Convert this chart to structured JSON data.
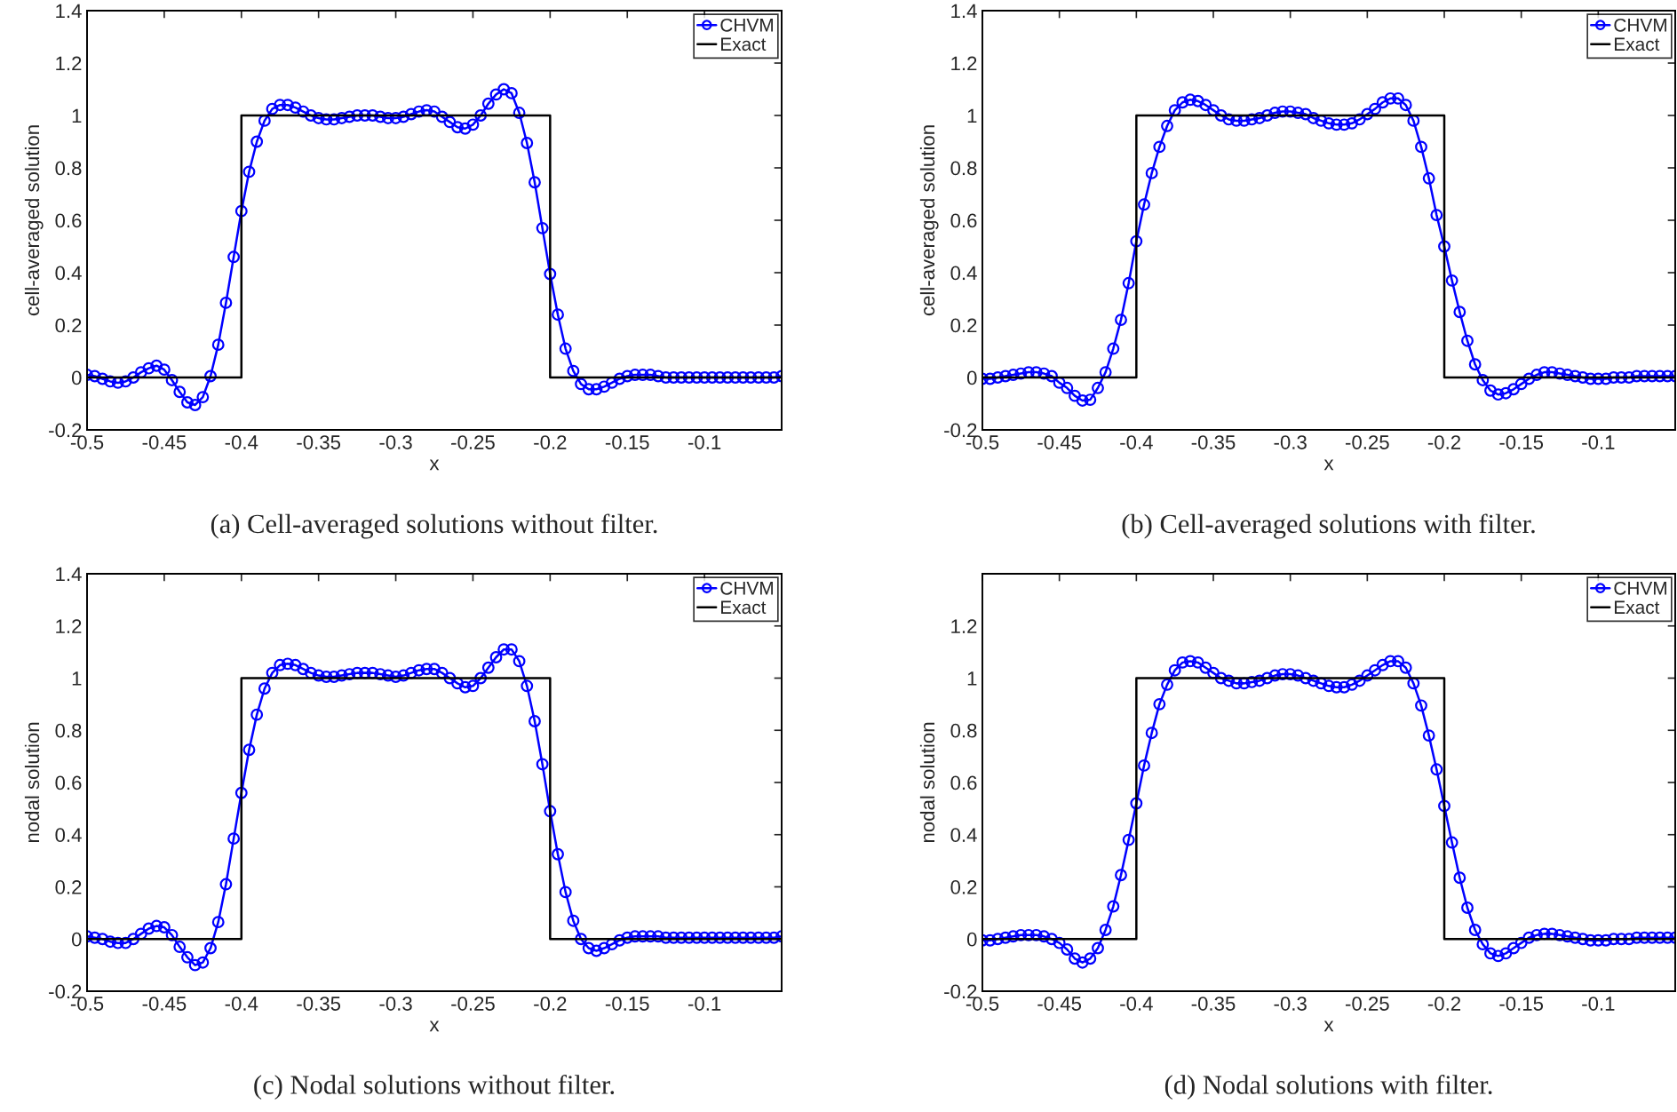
{
  "chart_data": [
    {
      "type": "line",
      "title": "(a) Cell-averaged solutions without filter.",
      "xlabel": "x",
      "ylabel": "cell-averaged solution",
      "legend": "top right",
      "xlim": [
        -0.5,
        -0.05
      ],
      "ylim": [
        -0.2,
        1.4
      ],
      "xticks": [
        -0.5,
        -0.45,
        -0.4,
        -0.35,
        -0.3,
        -0.25,
        -0.2,
        -0.15,
        -0.1
      ],
      "yticks": [
        -0.2,
        0,
        0.2,
        0.4,
        0.6,
        0.8,
        1,
        1.2,
        1.4
      ],
      "x": [
        -0.5,
        -0.495,
        -0.49,
        -0.485,
        -0.48,
        -0.475,
        -0.47,
        -0.465,
        -0.46,
        -0.455,
        -0.45,
        -0.445,
        -0.44,
        -0.435,
        -0.43,
        -0.425,
        -0.42,
        -0.415,
        -0.41,
        -0.405,
        -0.4,
        -0.395,
        -0.39,
        -0.385,
        -0.38,
        -0.375,
        -0.37,
        -0.365,
        -0.36,
        -0.355,
        -0.35,
        -0.345,
        -0.34,
        -0.335,
        -0.33,
        -0.325,
        -0.32,
        -0.315,
        -0.31,
        -0.305,
        -0.3,
        -0.295,
        -0.29,
        -0.285,
        -0.28,
        -0.275,
        -0.27,
        -0.265,
        -0.26,
        -0.255,
        -0.25,
        -0.245,
        -0.24,
        -0.235,
        -0.23,
        -0.225,
        -0.22,
        -0.215,
        -0.21,
        -0.205,
        -0.2,
        -0.195,
        -0.19,
        -0.185,
        -0.18,
        -0.175,
        -0.17,
        -0.165,
        -0.16,
        -0.155,
        -0.15,
        -0.145,
        -0.14,
        -0.135,
        -0.13,
        -0.125,
        -0.12,
        -0.115,
        -0.11,
        -0.105,
        -0.1,
        -0.095,
        -0.09,
        -0.085,
        -0.08,
        -0.075,
        -0.07,
        -0.065,
        -0.06,
        -0.055,
        -0.05
      ],
      "series": [
        {
          "name": "CHVM",
          "color": "#0000ff",
          "marker": "circle",
          "values": [
            0.01,
            0.005,
            -0.005,
            -0.015,
            -0.02,
            -0.015,
            0,
            0.02,
            0.035,
            0.045,
            0.03,
            -0.01,
            -0.055,
            -0.095,
            -0.105,
            -0.075,
            0.005,
            0.125,
            0.285,
            0.46,
            0.635,
            0.785,
            0.9,
            0.98,
            1.025,
            1.04,
            1.04,
            1.03,
            1.015,
            1.0,
            0.99,
            0.985,
            0.985,
            0.99,
            0.995,
            1.0,
            1.0,
            1.0,
            0.995,
            0.99,
            0.99,
            0.995,
            1.005,
            1.015,
            1.02,
            1.015,
            0.995,
            0.975,
            0.955,
            0.95,
            0.965,
            1.0,
            1.045,
            1.08,
            1.1,
            1.085,
            1.01,
            0.895,
            0.745,
            0.57,
            0.395,
            0.24,
            0.11,
            0.025,
            -0.025,
            -0.045,
            -0.045,
            -0.035,
            -0.02,
            -0.005,
            0.005,
            0.01,
            0.01,
            0.01,
            0.005,
            0,
            0,
            0,
            0,
            0,
            0,
            0,
            0,
            0,
            0,
            0,
            0,
            0,
            0,
            0,
            0.005
          ]
        },
        {
          "name": "Exact",
          "color": "#000000",
          "marker": "none",
          "x": [
            -0.5,
            -0.4,
            -0.4,
            -0.2,
            -0.2,
            -0.05
          ],
          "values": [
            0,
            0,
            1,
            1,
            0,
            0
          ]
        }
      ]
    },
    {
      "type": "line",
      "title": "(b) Cell-averaged solutions with filter.",
      "xlabel": "x",
      "ylabel": "cell-averaged solution",
      "legend": "top right",
      "xlim": [
        -0.5,
        -0.05
      ],
      "ylim": [
        -0.2,
        1.4
      ],
      "xticks": [
        -0.5,
        -0.45,
        -0.4,
        -0.35,
        -0.3,
        -0.25,
        -0.2,
        -0.15,
        -0.1
      ],
      "yticks": [
        -0.2,
        0,
        0.2,
        0.4,
        0.6,
        0.8,
        1,
        1.2,
        1.4
      ],
      "x": [
        -0.5,
        -0.495,
        -0.49,
        -0.485,
        -0.48,
        -0.475,
        -0.47,
        -0.465,
        -0.46,
        -0.455,
        -0.45,
        -0.445,
        -0.44,
        -0.435,
        -0.43,
        -0.425,
        -0.42,
        -0.415,
        -0.41,
        -0.405,
        -0.4,
        -0.395,
        -0.39,
        -0.385,
        -0.38,
        -0.375,
        -0.37,
        -0.365,
        -0.36,
        -0.355,
        -0.35,
        -0.345,
        -0.34,
        -0.335,
        -0.33,
        -0.325,
        -0.32,
        -0.315,
        -0.31,
        -0.305,
        -0.3,
        -0.295,
        -0.29,
        -0.285,
        -0.28,
        -0.275,
        -0.27,
        -0.265,
        -0.26,
        -0.255,
        -0.25,
        -0.245,
        -0.24,
        -0.235,
        -0.23,
        -0.225,
        -0.22,
        -0.215,
        -0.21,
        -0.205,
        -0.2,
        -0.195,
        -0.19,
        -0.185,
        -0.18,
        -0.175,
        -0.17,
        -0.165,
        -0.16,
        -0.155,
        -0.15,
        -0.145,
        -0.14,
        -0.135,
        -0.13,
        -0.125,
        -0.12,
        -0.115,
        -0.11,
        -0.105,
        -0.1,
        -0.095,
        -0.09,
        -0.085,
        -0.08,
        -0.075,
        -0.07,
        -0.065,
        -0.06,
        -0.055,
        -0.05
      ],
      "series": [
        {
          "name": "CHVM",
          "color": "#0000ff",
          "marker": "circle",
          "values": [
            -0.005,
            -0.005,
            0,
            0.005,
            0.01,
            0.015,
            0.02,
            0.02,
            0.015,
            0.005,
            -0.02,
            -0.04,
            -0.07,
            -0.088,
            -0.085,
            -0.04,
            0.02,
            0.11,
            0.22,
            0.36,
            0.52,
            0.66,
            0.78,
            0.88,
            0.96,
            1.02,
            1.05,
            1.06,
            1.055,
            1.04,
            1.02,
            1.0,
            0.985,
            0.98,
            0.98,
            0.985,
            0.99,
            1.0,
            1.01,
            1.015,
            1.015,
            1.01,
            1.005,
            0.99,
            0.98,
            0.97,
            0.965,
            0.965,
            0.97,
            0.985,
            1.005,
            1.025,
            1.05,
            1.065,
            1.065,
            1.04,
            0.98,
            0.88,
            0.76,
            0.62,
            0.5,
            0.37,
            0.25,
            0.14,
            0.05,
            -0.01,
            -0.05,
            -0.065,
            -0.06,
            -0.045,
            -0.025,
            -0.005,
            0.01,
            0.02,
            0.02,
            0.015,
            0.01,
            0.005,
            0,
            -0.005,
            -0.005,
            -0.005,
            0,
            0,
            0,
            0.005,
            0.005,
            0.005,
            0.005,
            0.005,
            0.005
          ]
        },
        {
          "name": "Exact",
          "color": "#000000",
          "marker": "none",
          "x": [
            -0.5,
            -0.4,
            -0.4,
            -0.2,
            -0.2,
            -0.05
          ],
          "values": [
            0,
            0,
            1,
            1,
            0,
            0
          ]
        }
      ]
    },
    {
      "type": "line",
      "title": "(c) Nodal solutions without filter.",
      "xlabel": "x",
      "ylabel": "nodal solution",
      "legend": "top right",
      "xlim": [
        -0.5,
        -0.05
      ],
      "ylim": [
        -0.2,
        1.4
      ],
      "xticks": [
        -0.5,
        -0.45,
        -0.4,
        -0.35,
        -0.3,
        -0.25,
        -0.2,
        -0.15,
        -0.1
      ],
      "yticks": [
        -0.2,
        0,
        0.2,
        0.4,
        0.6,
        0.8,
        1,
        1.2,
        1.4
      ],
      "x": [
        -0.5,
        -0.495,
        -0.49,
        -0.485,
        -0.48,
        -0.475,
        -0.47,
        -0.465,
        -0.46,
        -0.455,
        -0.45,
        -0.445,
        -0.44,
        -0.435,
        -0.43,
        -0.425,
        -0.42,
        -0.415,
        -0.41,
        -0.405,
        -0.4,
        -0.395,
        -0.39,
        -0.385,
        -0.38,
        -0.375,
        -0.37,
        -0.365,
        -0.36,
        -0.355,
        -0.35,
        -0.345,
        -0.34,
        -0.335,
        -0.33,
        -0.325,
        -0.32,
        -0.315,
        -0.31,
        -0.305,
        -0.3,
        -0.295,
        -0.29,
        -0.285,
        -0.28,
        -0.275,
        -0.27,
        -0.265,
        -0.26,
        -0.255,
        -0.25,
        -0.245,
        -0.24,
        -0.235,
        -0.23,
        -0.225,
        -0.22,
        -0.215,
        -0.21,
        -0.205,
        -0.2,
        -0.195,
        -0.19,
        -0.185,
        -0.18,
        -0.175,
        -0.17,
        -0.165,
        -0.16,
        -0.155,
        -0.15,
        -0.145,
        -0.14,
        -0.135,
        -0.13,
        -0.125,
        -0.12,
        -0.115,
        -0.11,
        -0.105,
        -0.1,
        -0.095,
        -0.09,
        -0.085,
        -0.08,
        -0.075,
        -0.07,
        -0.065,
        -0.06,
        -0.055,
        -0.05
      ],
      "series": [
        {
          "name": "CHVM",
          "color": "#0000ff",
          "marker": "circle",
          "values": [
            0.01,
            0.005,
            0,
            -0.01,
            -0.015,
            -0.015,
            0,
            0.02,
            0.04,
            0.05,
            0.045,
            0.015,
            -0.03,
            -0.07,
            -0.1,
            -0.09,
            -0.035,
            0.065,
            0.21,
            0.385,
            0.56,
            0.725,
            0.86,
            0.96,
            1.02,
            1.05,
            1.055,
            1.05,
            1.035,
            1.02,
            1.01,
            1.005,
            1.005,
            1.01,
            1.015,
            1.02,
            1.02,
            1.02,
            1.015,
            1.01,
            1.005,
            1.01,
            1.02,
            1.03,
            1.035,
            1.035,
            1.02,
            1.0,
            0.98,
            0.965,
            0.97,
            1.0,
            1.04,
            1.08,
            1.11,
            1.11,
            1.065,
            0.97,
            0.835,
            0.67,
            0.49,
            0.325,
            0.18,
            0.07,
            0,
            -0.035,
            -0.045,
            -0.035,
            -0.02,
            -0.005,
            0.005,
            0.01,
            0.01,
            0.01,
            0.01,
            0.005,
            0.005,
            0.005,
            0.005,
            0.005,
            0.005,
            0.005,
            0.005,
            0.005,
            0.005,
            0.005,
            0.005,
            0.005,
            0.005,
            0.005,
            0.01
          ]
        },
        {
          "name": "Exact",
          "color": "#000000",
          "marker": "none",
          "x": [
            -0.5,
            -0.4,
            -0.4,
            -0.2,
            -0.2,
            -0.05
          ],
          "values": [
            0,
            0,
            1,
            1,
            0,
            0
          ]
        }
      ]
    },
    {
      "type": "line",
      "title": "(d) Nodal solutions with filter.",
      "xlabel": "x",
      "ylabel": "nodal solution",
      "legend": "top right",
      "xlim": [
        -0.5,
        -0.05
      ],
      "ylim": [
        -0.2,
        1.4
      ],
      "xticks": [
        -0.5,
        -0.45,
        -0.4,
        -0.35,
        -0.3,
        -0.25,
        -0.2,
        -0.15,
        -0.1
      ],
      "yticks": [
        -0.2,
        0,
        0.2,
        0.4,
        0.6,
        0.8,
        1,
        1.2
      ],
      "x": [
        -0.5,
        -0.495,
        -0.49,
        -0.485,
        -0.48,
        -0.475,
        -0.47,
        -0.465,
        -0.46,
        -0.455,
        -0.45,
        -0.445,
        -0.44,
        -0.435,
        -0.43,
        -0.425,
        -0.42,
        -0.415,
        -0.41,
        -0.405,
        -0.4,
        -0.395,
        -0.39,
        -0.385,
        -0.38,
        -0.375,
        -0.37,
        -0.365,
        -0.36,
        -0.355,
        -0.35,
        -0.345,
        -0.34,
        -0.335,
        -0.33,
        -0.325,
        -0.32,
        -0.315,
        -0.31,
        -0.305,
        -0.3,
        -0.295,
        -0.29,
        -0.285,
        -0.28,
        -0.275,
        -0.27,
        -0.265,
        -0.26,
        -0.255,
        -0.25,
        -0.245,
        -0.24,
        -0.235,
        -0.23,
        -0.225,
        -0.22,
        -0.215,
        -0.21,
        -0.205,
        -0.2,
        -0.195,
        -0.19,
        -0.185,
        -0.18,
        -0.175,
        -0.17,
        -0.165,
        -0.16,
        -0.155,
        -0.15,
        -0.145,
        -0.14,
        -0.135,
        -0.13,
        -0.125,
        -0.12,
        -0.115,
        -0.11,
        -0.105,
        -0.1,
        -0.095,
        -0.09,
        -0.085,
        -0.08,
        -0.075,
        -0.07,
        -0.065,
        -0.06,
        -0.055,
        -0.05
      ],
      "series": [
        {
          "name": "CHVM",
          "color": "#0000ff",
          "marker": "circle",
          "values": [
            -0.005,
            -0.005,
            0,
            0.005,
            0.01,
            0.015,
            0.015,
            0.015,
            0.01,
            0,
            -0.015,
            -0.04,
            -0.075,
            -0.09,
            -0.075,
            -0.035,
            0.035,
            0.125,
            0.245,
            0.38,
            0.52,
            0.665,
            0.79,
            0.9,
            0.975,
            1.03,
            1.06,
            1.065,
            1.06,
            1.04,
            1.02,
            1.0,
            0.99,
            0.98,
            0.98,
            0.985,
            0.99,
            1.0,
            1.01,
            1.015,
            1.015,
            1.01,
            1.0,
            0.99,
            0.98,
            0.97,
            0.965,
            0.965,
            0.975,
            0.99,
            1.01,
            1.03,
            1.05,
            1.065,
            1.065,
            1.04,
            0.98,
            0.895,
            0.78,
            0.65,
            0.51,
            0.37,
            0.235,
            0.12,
            0.035,
            -0.02,
            -0.055,
            -0.065,
            -0.055,
            -0.035,
            -0.015,
            0.005,
            0.015,
            0.02,
            0.02,
            0.015,
            0.01,
            0.005,
            0,
            -0.005,
            -0.005,
            -0.005,
            0,
            0,
            0,
            0.005,
            0.005,
            0.005,
            0.005,
            0.005,
            0.005
          ]
        },
        {
          "name": "Exact",
          "color": "#000000",
          "marker": "none",
          "x": [
            -0.5,
            -0.4,
            -0.4,
            -0.2,
            -0.2,
            -0.05
          ],
          "values": [
            0,
            0,
            1,
            1,
            0,
            0
          ]
        }
      ]
    }
  ]
}
